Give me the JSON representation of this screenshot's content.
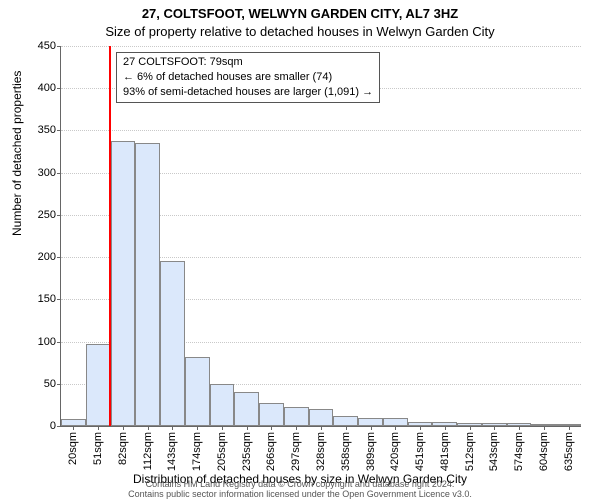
{
  "title_main": "27, COLTSFOOT, WELWYN GARDEN CITY, AL7 3HZ",
  "title_sub": "Size of property relative to detached houses in Welwyn Garden City",
  "y_axis_title": "Number of detached properties",
  "x_axis_title": "Distribution of detached houses by size in Welwyn Garden City",
  "attribution_line1": "Contains HM Land Registry data © Crown copyright and database right 2024.",
  "attribution_line2": "Contains public sector information licensed under the Open Government Licence v3.0.",
  "annotation": {
    "line1": "27 COLTSFOOT: 79sqm",
    "line2": "← 6% of detached houses are smaller (74)",
    "line3": "93% of semi-detached houses are larger (1,091) →"
  },
  "chart": {
    "type": "histogram",
    "ylim": [
      0,
      450
    ],
    "ytick_step": 50,
    "bar_fill": "#dbe8fb",
    "bar_border": "#888888",
    "grid_color": "#c9c9c9",
    "highlight_color": "#ff0000",
    "highlight_x_index": 1.95,
    "categories": [
      "20sqm",
      "51sqm",
      "82sqm",
      "112sqm",
      "143sqm",
      "174sqm",
      "205sqm",
      "235sqm",
      "266sqm",
      "297sqm",
      "328sqm",
      "358sqm",
      "389sqm",
      "420sqm",
      "451sqm",
      "481sqm",
      "512sqm",
      "543sqm",
      "574sqm",
      "604sqm",
      "635sqm"
    ],
    "values": [
      8,
      97,
      338,
      335,
      195,
      82,
      50,
      40,
      27,
      22,
      20,
      12,
      10,
      9,
      5,
      5,
      4,
      3,
      3,
      2,
      0
    ]
  }
}
